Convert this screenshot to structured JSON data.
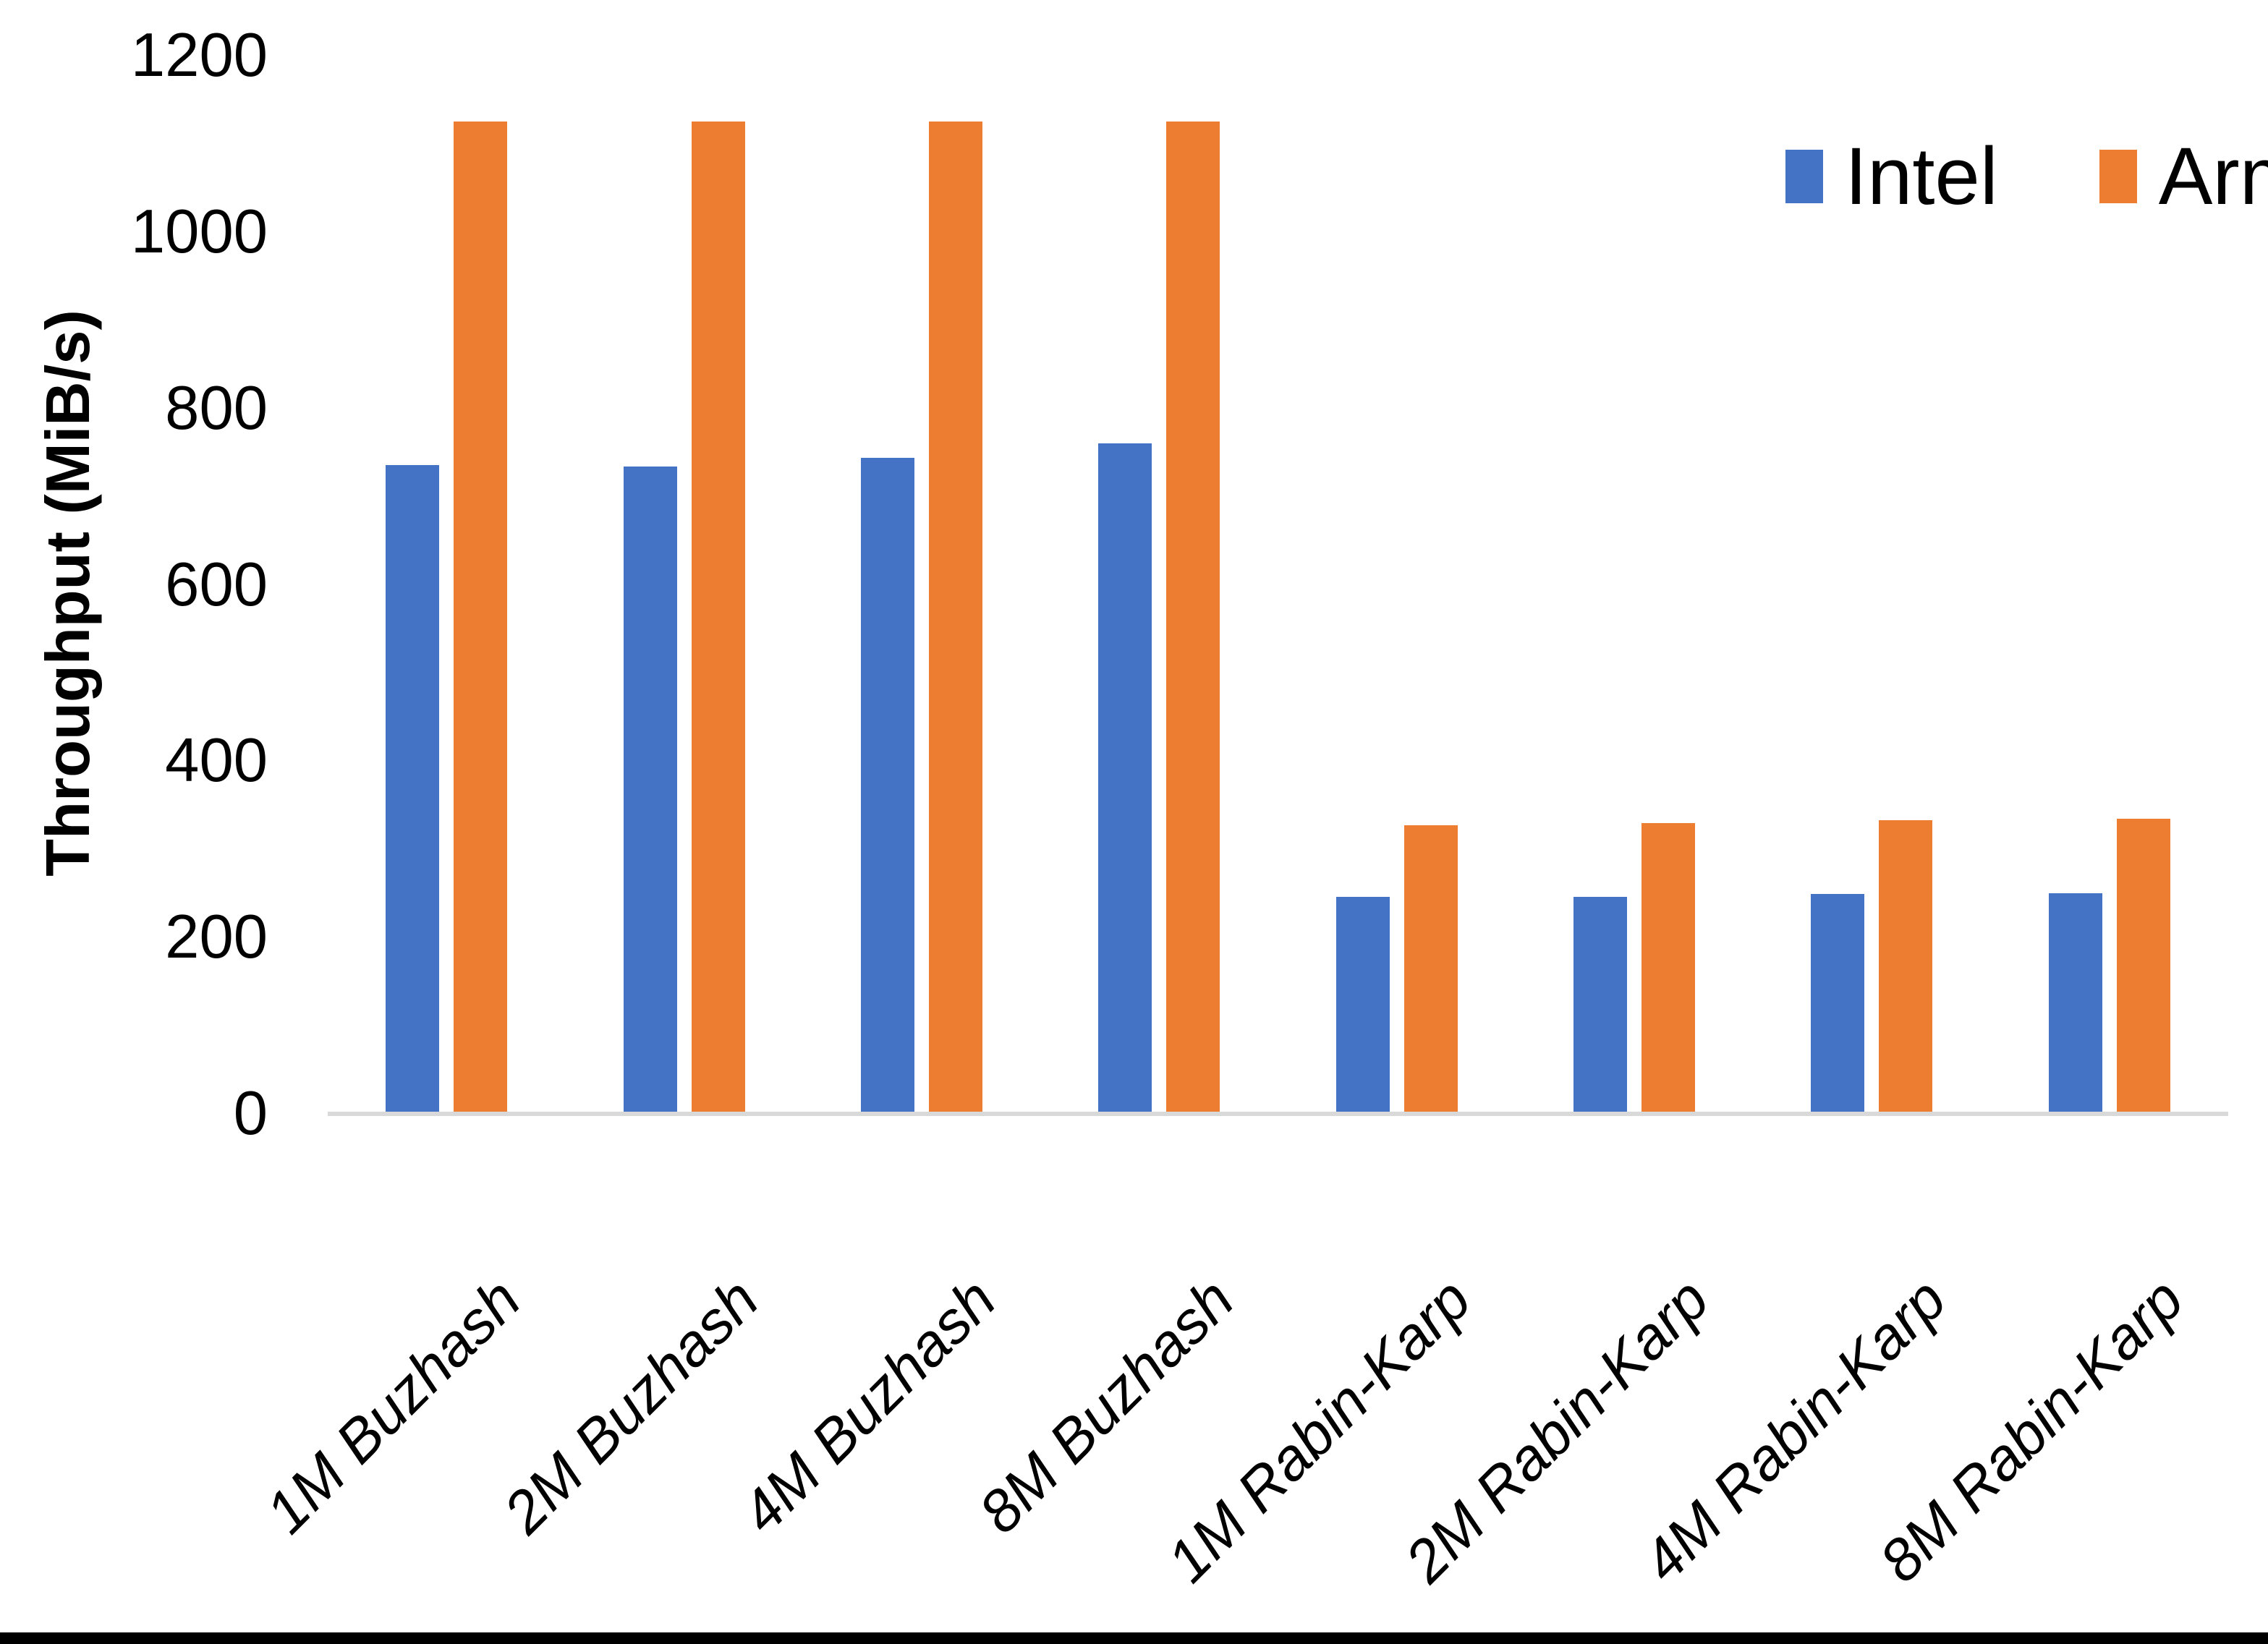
{
  "chart_data": {
    "type": "bar",
    "title": "",
    "ylabel": "Throughput (MiB/s)",
    "xlabel": "",
    "categories": [
      "1M Buzhash",
      "2M Buzhash",
      "4M Buzhash",
      "8M Buzhash",
      "1M Rabin-Karp",
      "2M Rabin-Karp",
      "4M Rabin-Karp",
      "8M Rabin-Karp"
    ],
    "series": [
      {
        "name": "Intel",
        "color": "#4472C4",
        "values": [
          736,
          734,
          744,
          760,
          246,
          246,
          249,
          250
        ]
      },
      {
        "name": "Arm",
        "color": "#ED7D31",
        "values": [
          1125,
          1125,
          1125,
          1125,
          327,
          330,
          333,
          335
        ]
      }
    ],
    "ylim": [
      0,
      1200
    ],
    "yticks": [
      0,
      200,
      400,
      600,
      800,
      1000,
      1200
    ],
    "grid": false,
    "legend_position": "top-right",
    "axis_line_color": "#D9D9D9",
    "text_color": "#000000",
    "background_color": "#FFFFFF"
  }
}
